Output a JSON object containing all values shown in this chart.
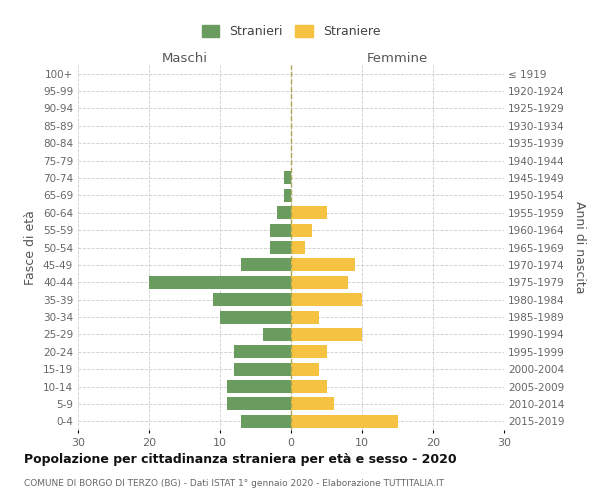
{
  "age_groups": [
    "0-4",
    "5-9",
    "10-14",
    "15-19",
    "20-24",
    "25-29",
    "30-34",
    "35-39",
    "40-44",
    "45-49",
    "50-54",
    "55-59",
    "60-64",
    "65-69",
    "70-74",
    "75-79",
    "80-84",
    "85-89",
    "90-94",
    "95-99",
    "100+"
  ],
  "birth_years": [
    "2015-2019",
    "2010-2014",
    "2005-2009",
    "2000-2004",
    "1995-1999",
    "1990-1994",
    "1985-1989",
    "1980-1984",
    "1975-1979",
    "1970-1974",
    "1965-1969",
    "1960-1964",
    "1955-1959",
    "1950-1954",
    "1945-1949",
    "1940-1944",
    "1935-1939",
    "1930-1934",
    "1925-1929",
    "1920-1924",
    "≤ 1919"
  ],
  "males": [
    7,
    9,
    9,
    8,
    8,
    4,
    10,
    11,
    20,
    7,
    3,
    3,
    2,
    1,
    1,
    0,
    0,
    0,
    0,
    0,
    0
  ],
  "females": [
    15,
    6,
    5,
    4,
    5,
    10,
    4,
    10,
    8,
    9,
    2,
    3,
    5,
    0,
    0,
    0,
    0,
    0,
    0,
    0,
    0
  ],
  "male_color": "#6a9c5f",
  "female_color": "#f5c242",
  "title": "Popolazione per cittadinanza straniera per età e sesso - 2020",
  "subtitle": "COMUNE DI BORGO DI TERZO (BG) - Dati ISTAT 1° gennaio 2020 - Elaborazione TUTTITALIA.IT",
  "left_label": "Maschi",
  "right_label": "Femmine",
  "ylabel_left": "Fasce di età",
  "ylabel_right": "Anni di nascita",
  "legend_male": "Stranieri",
  "legend_female": "Straniere",
  "xlim": 30,
  "bg_color": "#ffffff",
  "grid_color": "#cccccc",
  "bar_height": 0.75
}
